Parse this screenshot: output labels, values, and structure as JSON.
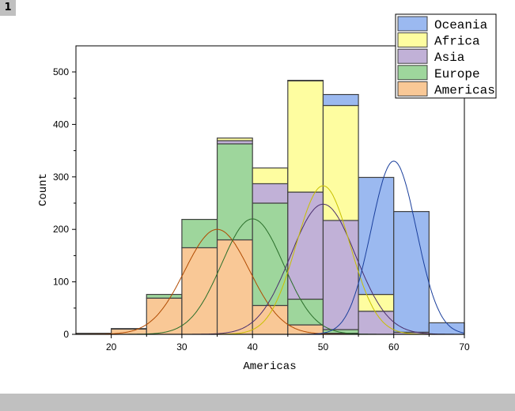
{
  "page_label": "1",
  "chart_data": {
    "type": "bar",
    "subtype": "stacked-histogram-with-normal-fits",
    "title": "",
    "xlabel": "Americas",
    "ylabel": "Count",
    "xlim": [
      15,
      70
    ],
    "ylim": [
      0,
      550
    ],
    "xticks": [
      "20",
      "30",
      "40",
      "50",
      "60",
      "70"
    ],
    "yticks": [
      "0",
      "100",
      "200",
      "300",
      "400",
      "500"
    ],
    "bin_edges": [
      15,
      20,
      25,
      30,
      35,
      40,
      45,
      50,
      55,
      60,
      65,
      70
    ],
    "legend_position": "top-right",
    "series": [
      {
        "name": "Americas",
        "color": "#f9c896",
        "curve_color": "#b04a00",
        "values": [
          2,
          10,
          69,
          165,
          180,
          55,
          18,
          2,
          0,
          0,
          0
        ],
        "fit": {
          "mean": 35,
          "peak": 200,
          "sd": 4.6
        }
      },
      {
        "name": "Europe",
        "color": "#9ed69c",
        "curve_color": "#2a6e2a",
        "values": [
          0,
          1,
          7,
          54,
          183,
          195,
          49,
          7,
          0,
          0,
          0
        ],
        "fit": {
          "mean": 40,
          "peak": 220,
          "sd": 4.4
        }
      },
      {
        "name": "Asia",
        "color": "#c1b1d7",
        "curve_color": "#4a2e6e",
        "values": [
          0,
          0,
          0,
          0,
          6,
          37,
          204,
          208,
          44,
          4,
          0
        ],
        "fit": {
          "mean": 50,
          "peak": 248,
          "sd": 4.6
        }
      },
      {
        "name": "Africa",
        "color": "#fefda0",
        "curve_color": "#c8c000",
        "values": [
          0,
          0,
          0,
          0,
          5,
          30,
          212,
          219,
          32,
          0,
          0
        ],
        "fit": {
          "mean": 50,
          "peak": 283,
          "sd": 3.8
        }
      },
      {
        "name": "Oceania",
        "color": "#9bb9f0",
        "curve_color": "#1a3f9c",
        "values": [
          0,
          0,
          0,
          0,
          0,
          0,
          1,
          21,
          223,
          230,
          22
        ],
        "fit": {
          "mean": 60,
          "peak": 330,
          "sd": 3.2
        }
      }
    ],
    "legend_order": [
      "Oceania",
      "Africa",
      "Asia",
      "Europe",
      "Americas"
    ]
  }
}
